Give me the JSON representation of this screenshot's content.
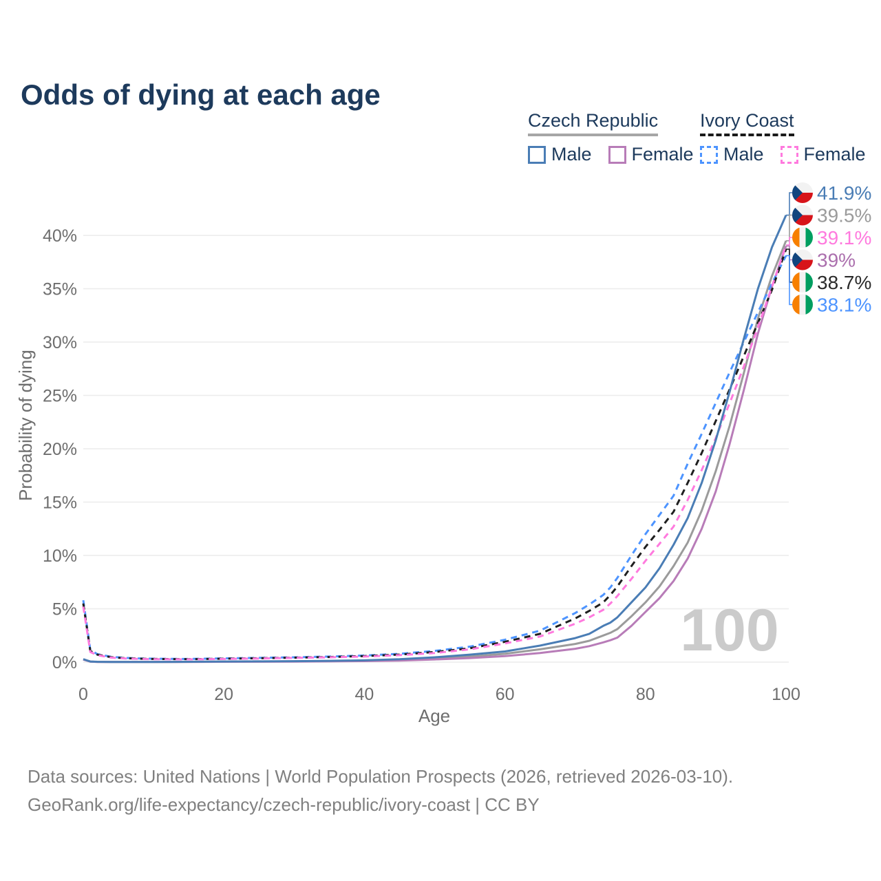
{
  "title": "Odds of dying at each age",
  "colors": {
    "title_text": "#1d3a5c",
    "axis_text": "#6e6e6e",
    "gridline": "#ececec",
    "watermark": "#cbcbcb",
    "footer_text": "#808080"
  },
  "legend": {
    "groups": [
      {
        "name": "Czech Republic",
        "line_style": "solid",
        "line_color": "#a6a6a6",
        "items": [
          {
            "label": "Male",
            "color": "#4a7db5"
          },
          {
            "label": "Female",
            "color": "#b87cb8"
          }
        ]
      },
      {
        "name": "Ivory Coast",
        "line_style": "dashed",
        "line_color": "#1a1a1a",
        "items": [
          {
            "label": "Male",
            "color": "#4d94ff"
          },
          {
            "label": "Female",
            "color": "#ff7ade"
          }
        ]
      }
    ]
  },
  "watermark": "100",
  "footer": {
    "line1": "Data sources: United Nations | World Population Prospects (2026, retrieved 2026-03-10).",
    "line2": "GeoRank.org/life-expectancy/czech-republic/ivory-coast | CC BY"
  },
  "chart_data": {
    "type": "line",
    "title": "Odds of dying at each age",
    "xlabel": "Age",
    "ylabel": "Probability of dying",
    "xlim": [
      0,
      100
    ],
    "ylim": [
      0,
      43
    ],
    "grid": "horizontal",
    "x_ticks": [
      {
        "value": 0,
        "label": "0"
      },
      {
        "value": 20,
        "label": "20"
      },
      {
        "value": 40,
        "label": "40"
      },
      {
        "value": 60,
        "label": "60"
      },
      {
        "value": 80,
        "label": "80"
      },
      {
        "value": 100,
        "label": "100"
      }
    ],
    "y_ticks": [
      {
        "value": 0,
        "label": "0%"
      },
      {
        "value": 5,
        "label": "5%"
      },
      {
        "value": 10,
        "label": "10%"
      },
      {
        "value": 15,
        "label": "15%"
      },
      {
        "value": 20,
        "label": "20%"
      },
      {
        "value": 25,
        "label": "25%"
      },
      {
        "value": 30,
        "label": "30%"
      },
      {
        "value": 35,
        "label": "35%"
      },
      {
        "value": 40,
        "label": "40%"
      }
    ],
    "ages": [
      0,
      1,
      2,
      4,
      6,
      8,
      10,
      15,
      20,
      25,
      30,
      35,
      40,
      45,
      50,
      55,
      60,
      65,
      70,
      72,
      74,
      75,
      76,
      78,
      80,
      82,
      84,
      86,
      88,
      90,
      92,
      94,
      96,
      98,
      100
    ],
    "series": [
      {
        "name": "Czech Republic Male",
        "flag": "cz",
        "color": "#4a7db5",
        "dashed": false,
        "end_label": "41.9%",
        "end_value": 41.9,
        "label_color": "#4a7db5",
        "values": [
          0.28,
          0.06,
          0.03,
          0.02,
          0.015,
          0.015,
          0.02,
          0.035,
          0.06,
          0.07,
          0.09,
          0.12,
          0.17,
          0.27,
          0.45,
          0.7,
          1.0,
          1.55,
          2.25,
          2.65,
          3.4,
          3.7,
          4.2,
          5.6,
          7.0,
          8.8,
          11.0,
          13.5,
          16.8,
          20.8,
          25.4,
          30.3,
          35.0,
          38.9,
          41.9
        ]
      },
      {
        "name": "Czech Republic Both sexes",
        "flag": "cz",
        "color": "#9b9b9b",
        "dashed": false,
        "end_label": "39.5%",
        "end_value": 39.5,
        "label_color": "#9b9b9b",
        "values": [
          0.26,
          0.05,
          0.025,
          0.018,
          0.013,
          0.013,
          0.018,
          0.03,
          0.045,
          0.055,
          0.07,
          0.09,
          0.13,
          0.2,
          0.34,
          0.52,
          0.78,
          1.2,
          1.7,
          2.0,
          2.5,
          2.75,
          3.1,
          4.3,
          5.6,
          7.1,
          9.0,
          11.2,
          14.2,
          17.9,
          22.2,
          27.1,
          32.2,
          36.2,
          39.5
        ]
      },
      {
        "name": "Czech Republic Female",
        "flag": "cz",
        "color": "#b87cb8",
        "dashed": false,
        "end_label": "39%",
        "end_value": 39.0,
        "label_color": "#ab6fad",
        "values": [
          0.24,
          0.045,
          0.02,
          0.015,
          0.01,
          0.01,
          0.015,
          0.02,
          0.03,
          0.04,
          0.05,
          0.07,
          0.1,
          0.15,
          0.25,
          0.38,
          0.56,
          0.85,
          1.25,
          1.5,
          1.85,
          2.05,
          2.3,
          3.4,
          4.7,
          6.0,
          7.6,
          9.7,
          12.5,
          16.0,
          20.5,
          25.5,
          30.8,
          35.2,
          39.0
        ]
      },
      {
        "name": "Ivory Coast Male",
        "flag": "ci",
        "color": "#4d94ff",
        "dashed": true,
        "end_label": "38.1%",
        "end_value": 38.1,
        "label_color": "#4d94ff",
        "values": [
          5.8,
          1.15,
          0.75,
          0.5,
          0.4,
          0.35,
          0.32,
          0.3,
          0.35,
          0.4,
          0.45,
          0.52,
          0.62,
          0.78,
          1.05,
          1.45,
          2.1,
          2.95,
          4.6,
          5.4,
          6.3,
          7.0,
          7.9,
          10.0,
          12.0,
          13.8,
          15.6,
          18.6,
          21.4,
          24.3,
          27.2,
          30.0,
          32.8,
          35.5,
          38.1
        ]
      },
      {
        "name": "Ivory Coast Both sexes",
        "flag": "ci",
        "color": "#1f1f1f",
        "dashed": true,
        "end_label": "38.7%",
        "end_value": 38.7,
        "label_color": "#2b2b2b",
        "values": [
          5.5,
          1.05,
          0.7,
          0.46,
          0.37,
          0.32,
          0.3,
          0.28,
          0.32,
          0.37,
          0.42,
          0.48,
          0.57,
          0.71,
          0.95,
          1.3,
          1.9,
          2.65,
          4.1,
          4.8,
          5.6,
          6.3,
          7.1,
          9.0,
          10.8,
          12.4,
          14.1,
          16.8,
          19.6,
          22.6,
          25.6,
          28.7,
          31.8,
          34.9,
          38.7
        ]
      },
      {
        "name": "Ivory Coast Female",
        "flag": "ci",
        "color": "#ff7ade",
        "dashed": true,
        "end_label": "39.1%",
        "end_value": 39.1,
        "label_color": "#ff7ade",
        "values": [
          5.2,
          0.95,
          0.65,
          0.42,
          0.34,
          0.3,
          0.28,
          0.26,
          0.3,
          0.34,
          0.4,
          0.45,
          0.52,
          0.65,
          0.85,
          1.2,
          1.75,
          2.4,
          3.6,
          4.2,
          4.9,
          5.5,
          6.2,
          7.8,
          9.5,
          11.1,
          12.7,
          15.2,
          18.0,
          21.0,
          24.3,
          27.7,
          31.4,
          35.2,
          39.1
        ]
      }
    ],
    "end_label_rows": [
      {
        "series": 0,
        "flag": "cz",
        "text": "41.9%",
        "color": "#4a7db5"
      },
      {
        "series": 1,
        "flag": "cz",
        "text": "39.5%",
        "color": "#9b9b9b"
      },
      {
        "series": 5,
        "flag": "ci",
        "text": "39.1%",
        "color": "#ff7ade"
      },
      {
        "series": 2,
        "flag": "cz",
        "text": "39%",
        "color": "#ab6fad"
      },
      {
        "series": 4,
        "flag": "ci",
        "text": "38.7%",
        "color": "#2b2b2b"
      },
      {
        "series": 3,
        "flag": "ci",
        "text": "38.1%",
        "color": "#4d94ff"
      }
    ],
    "legend_position": "top-right"
  }
}
